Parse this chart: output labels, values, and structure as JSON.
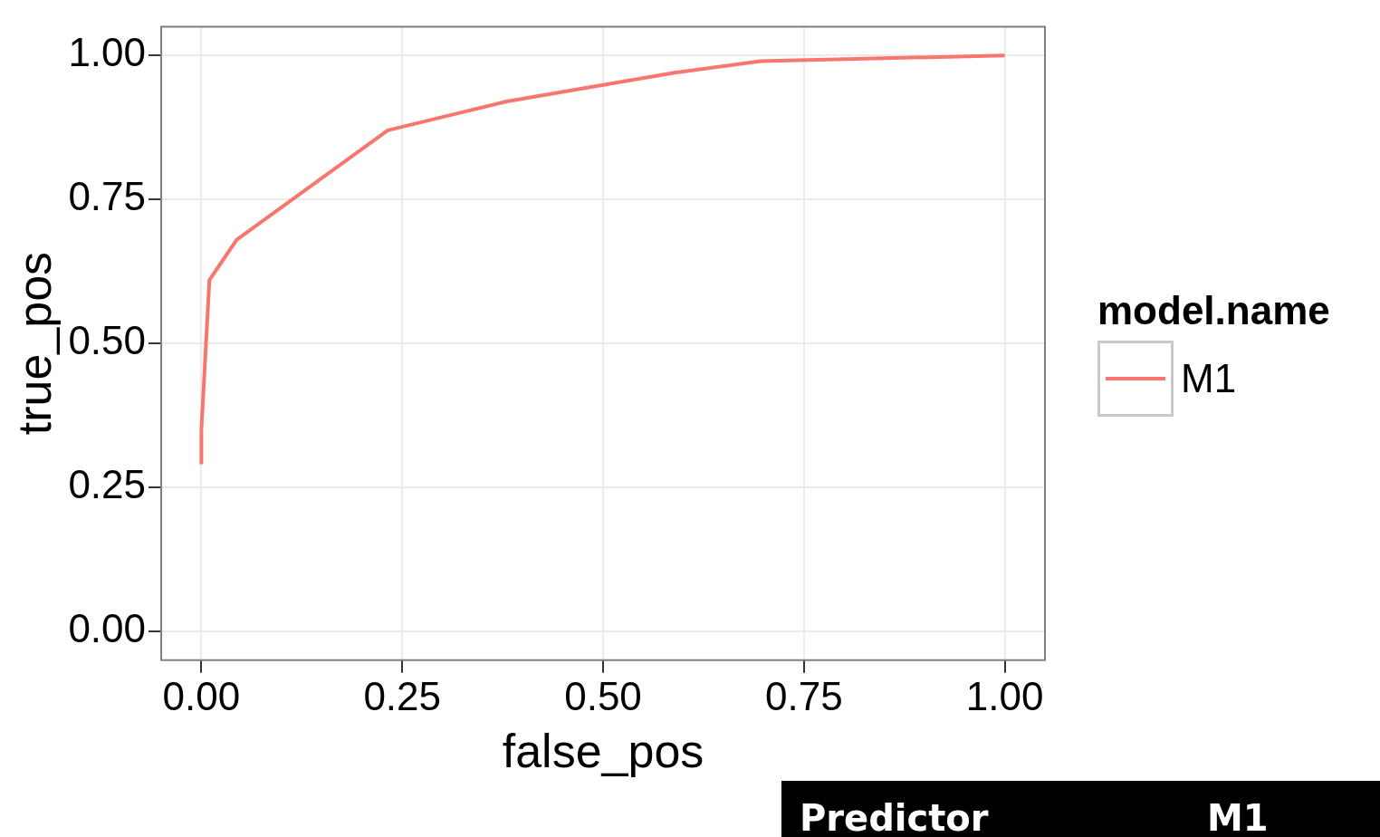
{
  "chart_data": {
    "type": "line",
    "xlabel": "false_pos",
    "ylabel": "true_pos",
    "legend_title": "model.name",
    "legend": "right",
    "grid": true,
    "marker": "none",
    "line_style": "solid",
    "xlim": [
      -0.05,
      1.05
    ],
    "ylim": [
      -0.05,
      1.05
    ],
    "xticks": [
      {
        "value": 0,
        "label": "0.00"
      },
      {
        "value": 0.25,
        "label": "0.25"
      },
      {
        "value": 0.5,
        "label": "0.50"
      },
      {
        "value": 0.75,
        "label": "0.75"
      },
      {
        "value": 1,
        "label": "1.00"
      }
    ],
    "yticks": [
      {
        "value": 0,
        "label": "0.00"
      },
      {
        "value": 0.25,
        "label": "0.25"
      },
      {
        "value": 0.5,
        "label": "0.50"
      },
      {
        "value": 0.75,
        "label": "0.75"
      },
      {
        "value": 1,
        "label": "1.00"
      }
    ],
    "series": [
      {
        "name": "M1",
        "color": "#f8766d",
        "x": [
          0,
          0,
          0.01,
          0.044,
          0.232,
          0.38,
          0.589,
          0.696,
          1
        ],
        "values": [
          0.29,
          0.35,
          0.61,
          0.68,
          0.87,
          0.92,
          0.97,
          0.99,
          1
        ]
      }
    ],
    "annotations": [
      "Predictor",
      "M1"
    ]
  }
}
